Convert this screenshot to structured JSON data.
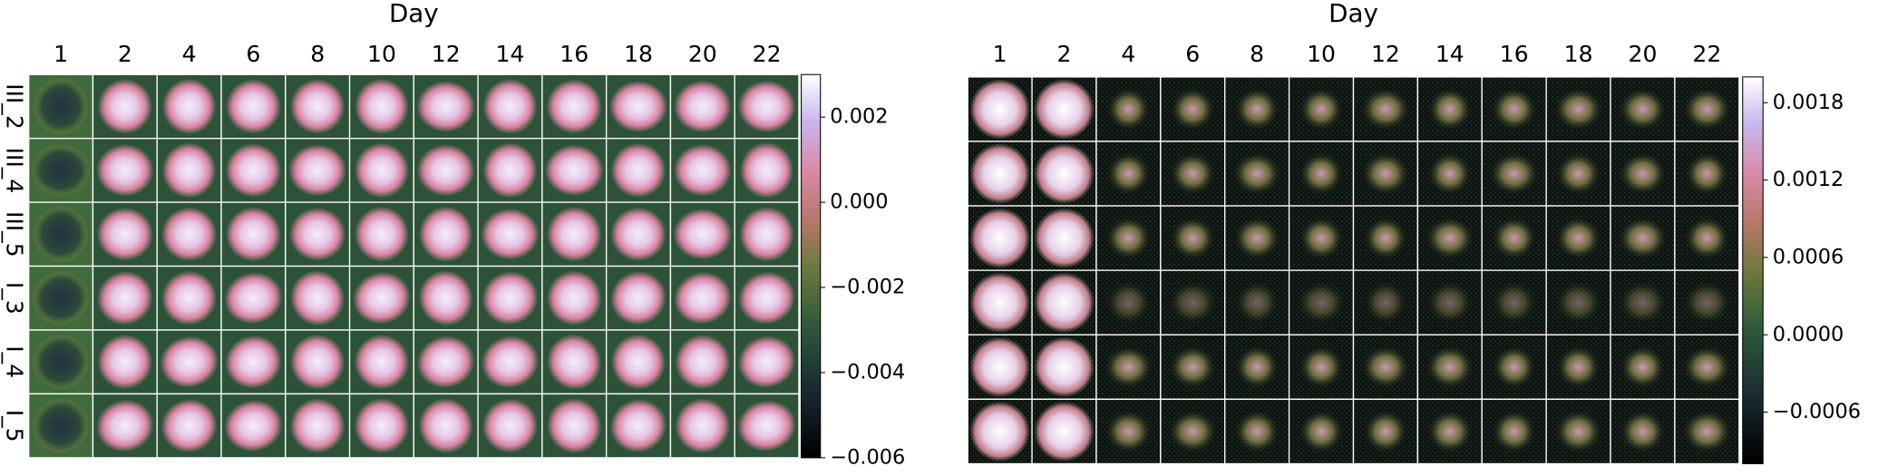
{
  "chart_data": [
    {
      "type": "image-grid",
      "title": "Day",
      "categories": [
        "1",
        "2",
        "4",
        "6",
        "8",
        "10",
        "12",
        "14",
        "16",
        "18",
        "20",
        "22"
      ],
      "rows": [
        "III_2",
        "III_4",
        "III_5",
        "I_3",
        "I_4",
        "I_5"
      ],
      "clim": [
        -0.006,
        0.003
      ],
      "cticks": [
        {
          "value": -0.006,
          "label": "−0.006"
        },
        {
          "value": -0.004,
          "label": "−0.004"
        },
        {
          "value": -0.002,
          "label": "−0.002"
        },
        {
          "value": 0,
          "label": "0.000"
        },
        0.002
      ]
    },
    {
      "type": "image-grid",
      "title": "Day",
      "categories": [
        "1",
        "2",
        "4",
        "6",
        "8",
        "10",
        "12",
        "14",
        "16",
        "18",
        "20",
        "22"
      ],
      "rows": [
        null,
        null,
        null,
        null,
        null,
        null
      ],
      "clim": [
        -0.001,
        0.002
      ],
      "cticks": [
        {
          "value": -0.0006,
          "label": "−0.0006"
        },
        {
          "value": 0,
          "label": "0.0000"
        },
        0.0006,
        0.0012,
        0.0018
      ]
    }
  ]
}
